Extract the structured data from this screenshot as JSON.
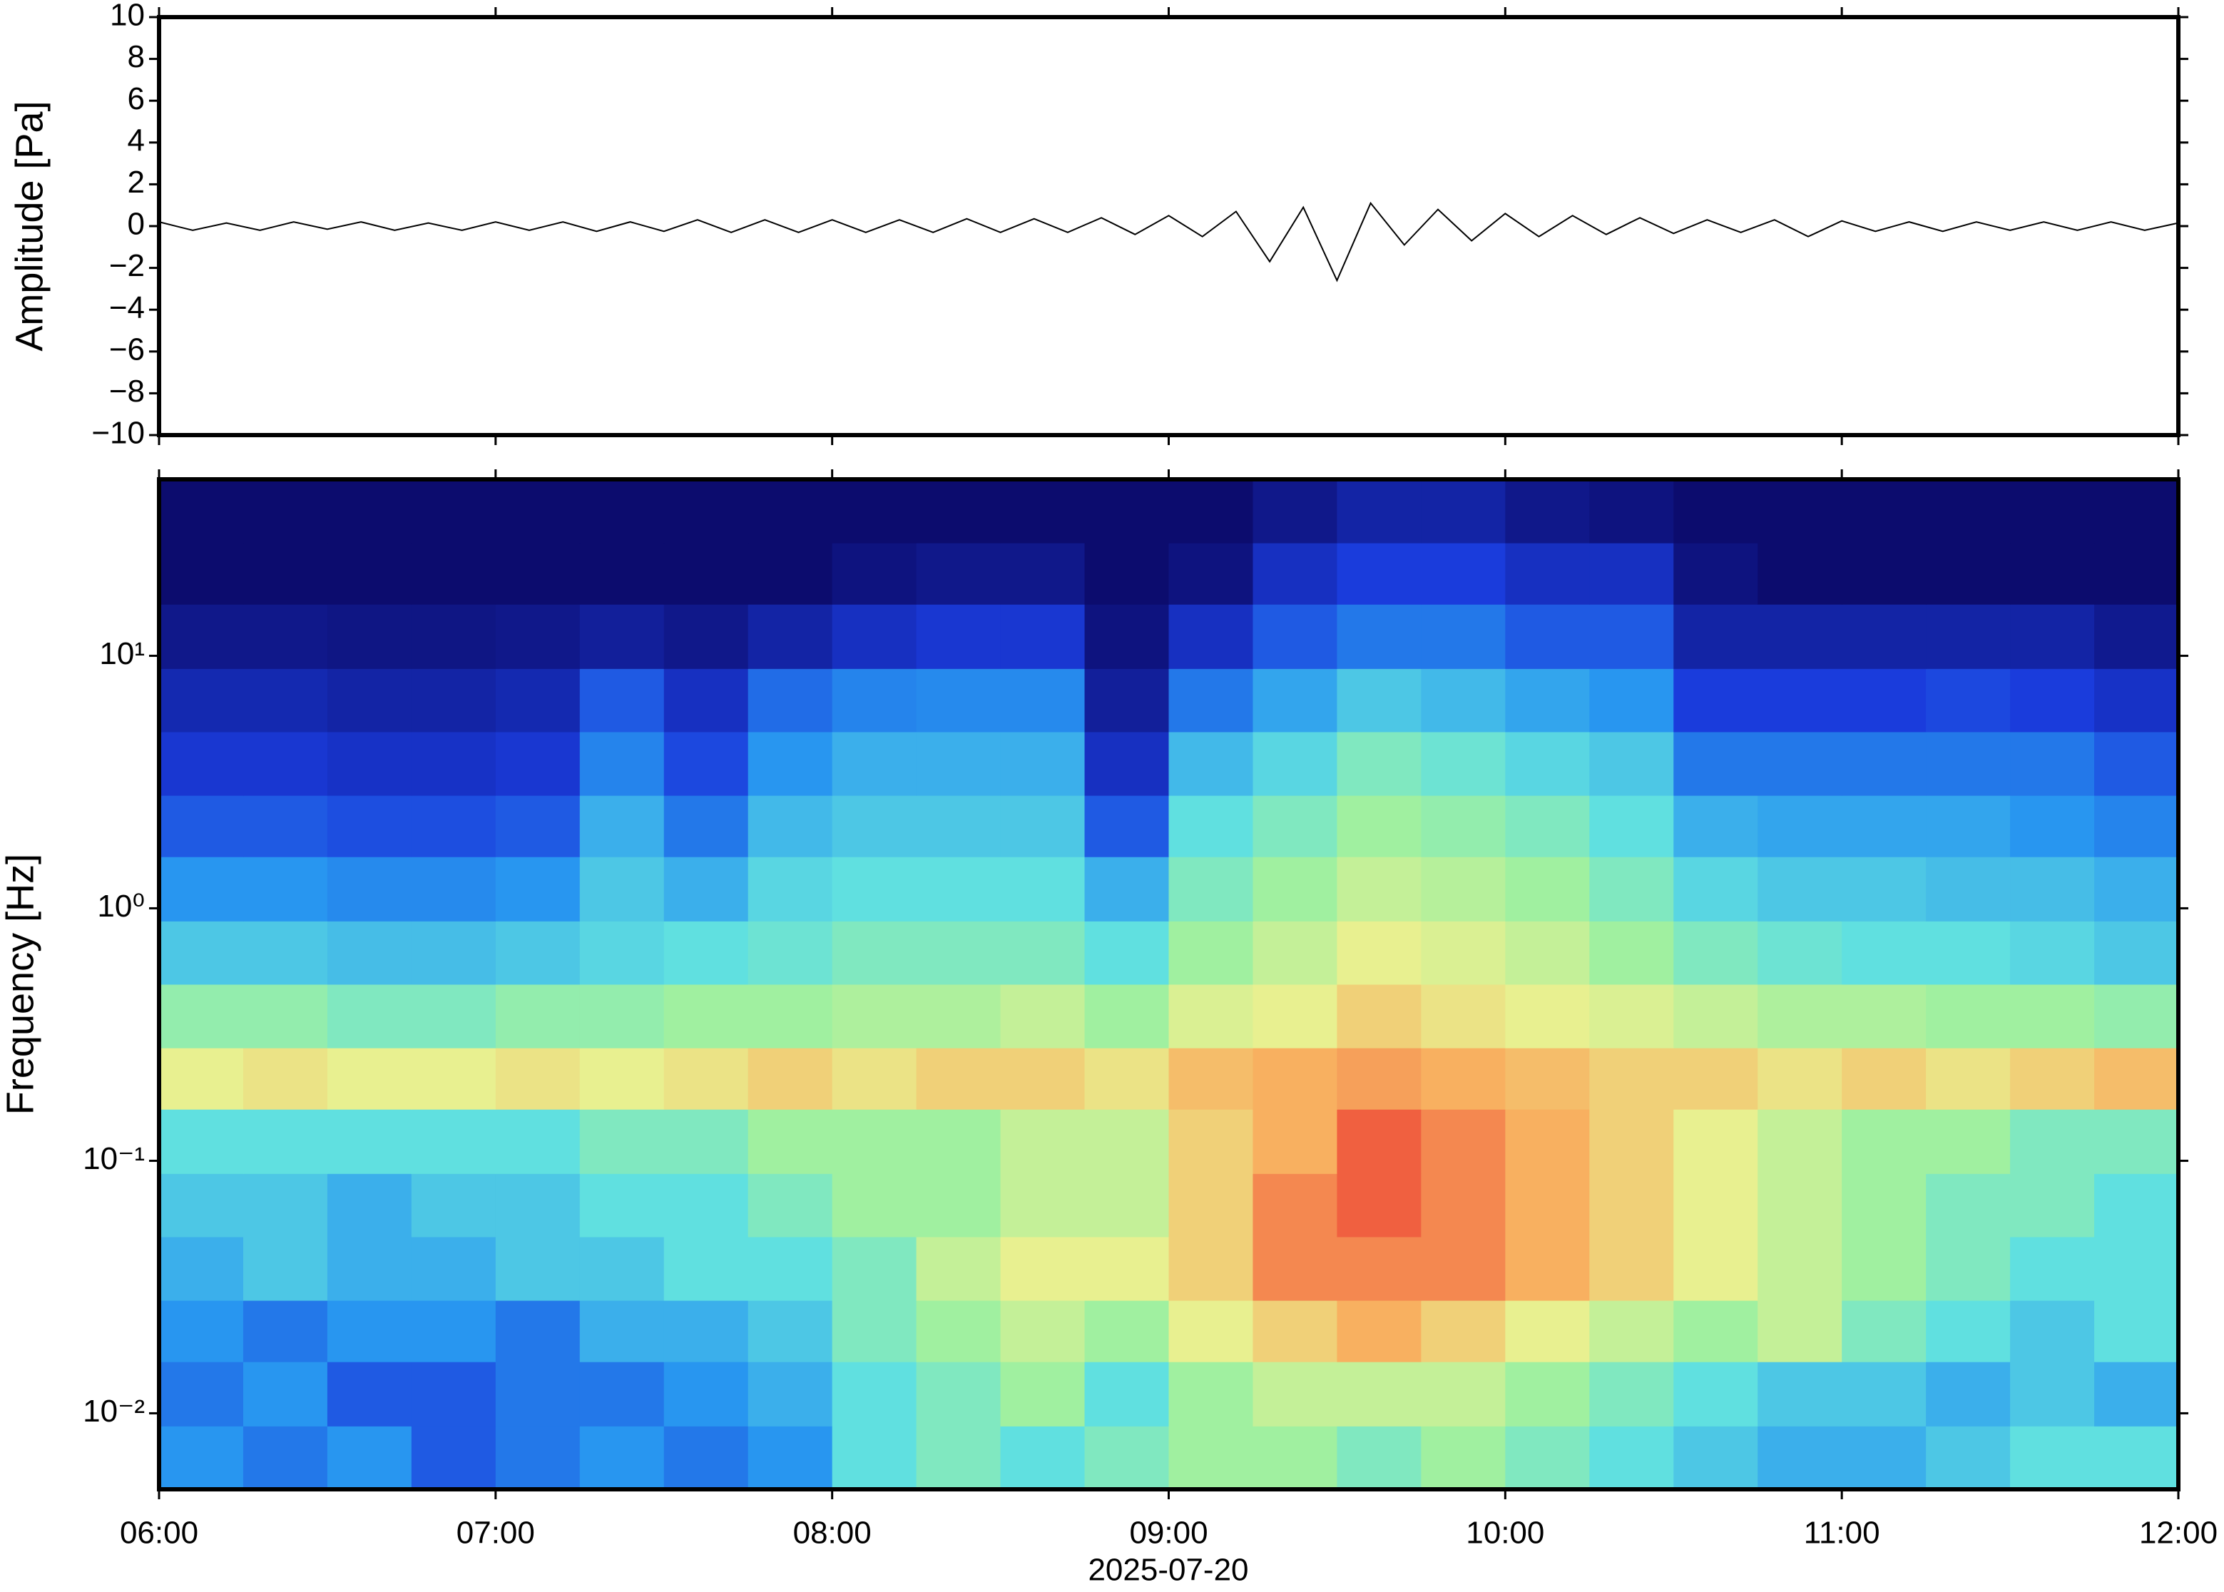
{
  "chart_data": [
    {
      "type": "line",
      "ylabel": "Amplitude [Pa]",
      "color": "#000000",
      "grid": false,
      "xlim": [
        6,
        12
      ],
      "xticks": [
        6,
        7,
        8,
        9,
        10,
        11,
        12
      ],
      "ylim": [
        -10,
        10
      ],
      "yticks": [
        {
          "value": -10,
          "label": "−10"
        },
        {
          "value": -8,
          "label": "−8"
        },
        {
          "value": -6,
          "label": "−6"
        },
        {
          "value": -4,
          "label": "−4"
        },
        {
          "value": -2,
          "label": "−2"
        },
        0,
        2,
        4,
        6,
        8,
        10
      ],
      "x": [
        6.0,
        6.1,
        6.2,
        6.3,
        6.4,
        6.5,
        6.6,
        6.7,
        6.8,
        6.9,
        7.0,
        7.1,
        7.2,
        7.3,
        7.4,
        7.5,
        7.6,
        7.7,
        7.8,
        7.9,
        8.0,
        8.1,
        8.2,
        8.3,
        8.4,
        8.5,
        8.6,
        8.7,
        8.8,
        8.9,
        9.0,
        9.1,
        9.2,
        9.3,
        9.4,
        9.5,
        9.6,
        9.7,
        9.8,
        9.9,
        10.0,
        10.1,
        10.2,
        10.3,
        10.4,
        10.5,
        10.6,
        10.7,
        10.8,
        10.9,
        11.0,
        11.1,
        11.2,
        11.3,
        11.4,
        11.5,
        11.6,
        11.7,
        11.8,
        11.9,
        12.0
      ],
      "values": [
        0.2,
        -0.2,
        0.15,
        -0.2,
        0.2,
        -0.15,
        0.2,
        -0.2,
        0.15,
        -0.2,
        0.2,
        -0.2,
        0.2,
        -0.25,
        0.2,
        -0.25,
        0.3,
        -0.3,
        0.3,
        -0.3,
        0.3,
        -0.3,
        0.3,
        -0.3,
        0.35,
        -0.3,
        0.35,
        -0.3,
        0.4,
        -0.4,
        0.5,
        -0.5,
        0.7,
        -1.7,
        0.9,
        -2.6,
        1.1,
        -0.9,
        0.8,
        -0.7,
        0.6,
        -0.5,
        0.5,
        -0.4,
        0.4,
        -0.35,
        0.3,
        -0.3,
        0.3,
        -0.5,
        0.25,
        -0.25,
        0.2,
        -0.25,
        0.2,
        -0.2,
        0.2,
        -0.2,
        0.2,
        -0.2,
        0.15
      ]
    },
    {
      "type": "heatmap",
      "ylabel": "Frequency [Hz]",
      "xlabel": "2025-07-20",
      "colormap": "jet",
      "log_y": true,
      "xlim": [
        6,
        12
      ],
      "xticks": [
        {
          "value": 6,
          "label": "06:00"
        },
        {
          "value": 7,
          "label": "07:00"
        },
        {
          "value": 8,
          "label": "08:00"
        },
        {
          "value": 9,
          "label": "09:00"
        },
        {
          "value": 10,
          "label": "10:00"
        },
        {
          "value": 11,
          "label": "11:00"
        },
        {
          "value": 12,
          "label": "12:00"
        }
      ],
      "ylim": [
        0.005,
        50
      ],
      "yticks": [
        {
          "value": 0.01,
          "label": "10⁻²"
        },
        {
          "value": 0.1,
          "label": "10⁻¹"
        },
        {
          "value": 1,
          "label": "10⁰"
        },
        {
          "value": 10,
          "label": "10¹"
        }
      ],
      "zlim": [
        0,
        10
      ],
      "xbins": [
        6,
        6.25,
        6.5,
        6.75,
        7,
        7.25,
        7.5,
        7.75,
        8,
        8.25,
        8.5,
        8.75,
        9,
        9.25,
        9.5,
        9.75,
        10,
        10.25,
        10.5,
        10.75,
        11,
        11.25,
        11.5,
        11.75,
        12
      ],
      "ybins": [
        0.005,
        0.0089,
        0.016,
        0.028,
        0.05,
        0.089,
        0.16,
        0.28,
        0.5,
        0.89,
        1.6,
        2.8,
        5,
        8.9,
        16,
        28,
        50
      ],
      "z": [
        [
          3.5,
          3,
          3.5,
          2.5,
          3,
          3.5,
          3,
          3.5,
          5,
          5.5,
          5,
          5.5,
          6,
          6,
          5.5,
          6,
          5.5,
          5,
          4.5,
          4,
          4,
          4.5,
          5,
          5
        ],
        [
          3,
          3.5,
          2.5,
          2.5,
          3,
          3,
          3.5,
          4,
          5,
          5.5,
          6,
          5,
          6,
          6.5,
          6.5,
          6.5,
          6,
          5.5,
          5,
          4.5,
          4.5,
          4,
          4.5,
          4
        ],
        [
          3.5,
          3,
          3.5,
          3.5,
          3,
          4,
          4,
          4.5,
          5.5,
          6,
          6.5,
          6,
          7,
          7.5,
          8,
          7.5,
          7,
          6.5,
          6,
          6.5,
          5.5,
          5,
          4.5,
          5
        ],
        [
          4,
          4.5,
          4,
          4,
          4.5,
          4.5,
          5,
          5,
          5.5,
          6.5,
          7,
          7,
          7.5,
          8.5,
          8.5,
          8.5,
          8,
          7.5,
          7,
          6.5,
          6,
          5.5,
          5,
          5
        ],
        [
          4.5,
          4.5,
          4,
          4.5,
          4.5,
          5,
          5,
          5.5,
          6,
          6,
          6.5,
          6.5,
          7.5,
          8.5,
          9,
          8.5,
          8,
          7.5,
          7,
          6.5,
          6,
          5.5,
          5.5,
          5
        ],
        [
          5,
          5,
          5,
          5,
          5,
          5.5,
          5.5,
          6,
          6,
          6,
          6.5,
          6.5,
          7.5,
          8,
          9,
          8.5,
          8,
          7.5,
          7,
          6.5,
          6,
          6,
          5.5,
          5.5
        ],
        [
          7,
          7.2,
          7,
          7,
          7.2,
          7,
          7.2,
          7.5,
          7.2,
          7.5,
          7.5,
          7.2,
          7.8,
          8,
          8.2,
          8,
          7.8,
          7.5,
          7.5,
          7.2,
          7.5,
          7.2,
          7.5,
          7.8
        ],
        [
          5.8,
          5.8,
          5.5,
          5.5,
          5.8,
          5.8,
          6,
          6,
          6.2,
          6.2,
          6.5,
          6,
          6.8,
          7,
          7.5,
          7.2,
          7,
          6.8,
          6.5,
          6.2,
          6.2,
          6,
          6,
          5.8
        ],
        [
          4.5,
          4.5,
          4.3,
          4.3,
          4.5,
          4.8,
          5,
          5.2,
          5.5,
          5.5,
          5.5,
          5,
          6,
          6.5,
          7,
          6.8,
          6.5,
          6,
          5.5,
          5.2,
          5,
          5,
          4.8,
          4.5
        ],
        [
          3.5,
          3.5,
          3.3,
          3.3,
          3.5,
          4.5,
          4,
          4.8,
          5,
          5,
          5,
          4,
          5.5,
          6,
          6.5,
          6.3,
          6,
          5.5,
          4.8,
          4.5,
          4.5,
          4.3,
          4.3,
          4
        ],
        [
          2.5,
          2.5,
          2.3,
          2.3,
          2.5,
          4,
          3,
          4.2,
          4.5,
          4.5,
          4.5,
          2.5,
          5,
          5.5,
          6,
          5.8,
          5.5,
          5,
          4,
          3.8,
          3.8,
          3.8,
          3.5,
          3.2
        ],
        [
          1.8,
          1.8,
          1.6,
          1.6,
          1.8,
          3.2,
          2.2,
          3.5,
          4,
          4,
          4,
          1.5,
          4.2,
          4.8,
          5.5,
          5.2,
          4.8,
          4.5,
          3,
          3,
          3,
          3,
          3,
          2.5
        ],
        [
          1.2,
          1.2,
          1,
          1,
          1.2,
          2.5,
          1.5,
          2.8,
          3.2,
          3.3,
          3.3,
          0.8,
          3,
          3.8,
          4.5,
          4.2,
          3.8,
          3.5,
          2,
          2,
          2,
          2.2,
          2,
          1.6
        ],
        [
          0.5,
          0.5,
          0.4,
          0.4,
          0.5,
          0.8,
          0.5,
          1,
          1.5,
          1.8,
          1.8,
          0.3,
          1.5,
          2.5,
          3,
          3,
          2.5,
          2.5,
          1,
          1,
          1,
          1,
          1,
          0.6
        ],
        [
          0,
          0,
          0,
          0,
          0,
          0,
          0,
          0,
          0.3,
          0.5,
          0.5,
          0,
          0.3,
          1.5,
          2,
          2,
          1.5,
          1.5,
          0.3,
          0,
          0,
          0,
          0,
          0
        ],
        [
          0,
          0,
          0,
          0,
          0,
          0,
          0,
          0,
          0,
          0,
          0,
          0,
          0,
          0.5,
          1,
          1,
          0.5,
          0.3,
          0,
          0,
          0,
          0,
          0,
          0
        ]
      ]
    }
  ]
}
